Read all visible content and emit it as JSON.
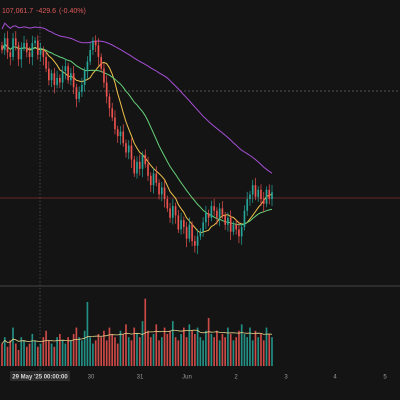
{
  "header": {
    "price": "107,061.7",
    "change": "-429.6",
    "change_pct": "(-0.40%)"
  },
  "colors": {
    "background": "#141414",
    "up": "#26a69a",
    "down": "#ef5350",
    "ma_short": "#f0c24b",
    "ma_mid": "#66d17a",
    "ma_long": "#a64fd6",
    "volume_ma": "#e8d48b",
    "dashed_line": "#8f8f8f",
    "price_line": "#b23b3b",
    "separator": "#555555"
  },
  "chart_data": {
    "type": "candlestick",
    "title": "",
    "x_axis": {
      "tick_labels": [
        "29 May '25  00:00:00",
        "30",
        "31",
        "Jun",
        "2",
        "3",
        "4",
        "5"
      ]
    },
    "series": [
      {
        "name": "",
        "kind": "candles",
        "closes": [
          108.4,
          108.9,
          108.3,
          108.1,
          108.9,
          108.6,
          108.0,
          108.5,
          108.7,
          108.3,
          108.1,
          108.7,
          108.8,
          108.2,
          108.4,
          108.1,
          107.6,
          107.1,
          107.4,
          106.9,
          107.2,
          107.0,
          107.5,
          107.7,
          107.1,
          107.4,
          106.8,
          106.3,
          106.6,
          106.9,
          107.5,
          107.9,
          108.4,
          108.8,
          108.6,
          108.1,
          107.6,
          107.0,
          106.4,
          105.9,
          105.5,
          105.0,
          104.7,
          104.9,
          104.4,
          104.0,
          104.3,
          103.7,
          103.1,
          103.6,
          103.3,
          103.9,
          103.5,
          103.0,
          102.6,
          103.1,
          102.7,
          102.2,
          102.5,
          102.0,
          101.6,
          101.2,
          101.7,
          101.3,
          100.7,
          101.1,
          100.8,
          100.3,
          100.9,
          100.2,
          100.0,
          100.4,
          100.6,
          101.0,
          101.4,
          101.2,
          101.7,
          101.5,
          101.2,
          101.6,
          101.3,
          100.9,
          101.2,
          100.6,
          100.9,
          100.7,
          100.4,
          100.8,
          101.5,
          102.0,
          102.2,
          102.6,
          102.1,
          102.4,
          102.0,
          101.8,
          102.4,
          102.0,
          102.3
        ]
      },
      {
        "name": "",
        "kind": "line",
        "label": "short moving average"
      },
      {
        "name": "",
        "kind": "line",
        "label": "mid moving average"
      },
      {
        "name": "",
        "kind": "line",
        "label": "long moving average"
      },
      {
        "name": "",
        "kind": "volume",
        "values": [
          7,
          9,
          6,
          8,
          12,
          7,
          5,
          9,
          8,
          6,
          7,
          10,
          8,
          6,
          7,
          9,
          11,
          8,
          7,
          6,
          9,
          10,
          8,
          7,
          9,
          8,
          10,
          12,
          9,
          8,
          11,
          20,
          9,
          7,
          8,
          10,
          9,
          11,
          8,
          12,
          10,
          9,
          7,
          11,
          10,
          13,
          9,
          8,
          12,
          10,
          9,
          14,
          21,
          11,
          9,
          10,
          13,
          8,
          9,
          12,
          10,
          11,
          14,
          9,
          8,
          10,
          12,
          9,
          13,
          11,
          10,
          12,
          9,
          8,
          11,
          15,
          10,
          9,
          11,
          8,
          10,
          9,
          12,
          10,
          8,
          9,
          11,
          13,
          10,
          9,
          12,
          8,
          11,
          9,
          10,
          8,
          12,
          10,
          9
        ]
      }
    ],
    "grid": false
  }
}
